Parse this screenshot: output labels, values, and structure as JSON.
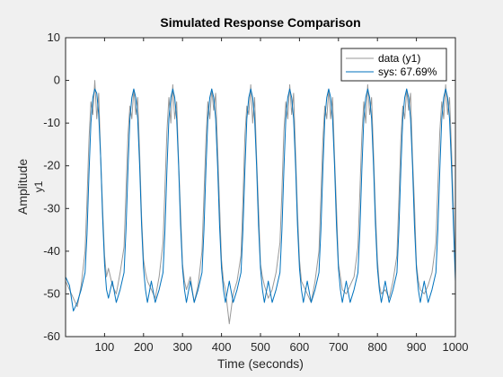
{
  "chart_data": {
    "type": "line",
    "title": "Simulated Response Comparison",
    "xlabel": "Time (seconds)",
    "ylabel": "Amplitude",
    "ylabel_sub": "y1",
    "xlim": [
      0,
      1000
    ],
    "ylim": [
      -60,
      10
    ],
    "xticks": [
      100,
      200,
      300,
      400,
      500,
      600,
      700,
      800,
      900,
      1000
    ],
    "yticks": [
      -60,
      -50,
      -40,
      -30,
      -20,
      -10,
      0,
      10
    ],
    "legend_position": "top-right",
    "grid": false,
    "series": [
      {
        "name": "data (y1)",
        "color": "#999999",
        "x": [
          0,
          10,
          20,
          30,
          40,
          50,
          55,
          60,
          65,
          70,
          75,
          80,
          85,
          90,
          95,
          100,
          105,
          110,
          120,
          130,
          140,
          150,
          155,
          160,
          165,
          170,
          175,
          180,
          185,
          190,
          195,
          200,
          205,
          210,
          220,
          230,
          240,
          250,
          255,
          260,
          265,
          270,
          275,
          280,
          285,
          290,
          295,
          300,
          305,
          310,
          320,
          330,
          340,
          350,
          355,
          360,
          365,
          370,
          375,
          380,
          385,
          390,
          395,
          400,
          405,
          410,
          420,
          430,
          440,
          450,
          455,
          460,
          465,
          470,
          475,
          480,
          485,
          490,
          495,
          500,
          505,
          510,
          520,
          530,
          540,
          550,
          555,
          560,
          565,
          570,
          575,
          580,
          585,
          590,
          595,
          600,
          605,
          610,
          620,
          630,
          640,
          650,
          655,
          660,
          665,
          670,
          675,
          680,
          685,
          690,
          695,
          700,
          705,
          710,
          720,
          730,
          740,
          750,
          755,
          760,
          765,
          770,
          775,
          780,
          785,
          790,
          795,
          800,
          805,
          810,
          820,
          830,
          840,
          850,
          855,
          860,
          865,
          870,
          875,
          880,
          885,
          890,
          895,
          900,
          905,
          910,
          920,
          930,
          940,
          950,
          955,
          960,
          965,
          970,
          975,
          980,
          985,
          990,
          995,
          1000
        ],
        "y": [
          -47,
          -49,
          -51,
          -53,
          -48,
          -40,
          -28,
          -14,
          -5,
          -8,
          0,
          -9,
          -3,
          -18,
          -30,
          -41,
          -46,
          -44,
          -48,
          -50,
          -45,
          -39,
          -26,
          -13,
          -6,
          -9,
          -2,
          -8,
          -4,
          -17,
          -32,
          -42,
          -45,
          -47,
          -49,
          -51,
          -46,
          -38,
          -25,
          -12,
          -4,
          -10,
          -1,
          -9,
          -5,
          -19,
          -31,
          -43,
          -47,
          -49,
          -46,
          -52,
          -48,
          -40,
          -27,
          -14,
          -5,
          -9,
          -2,
          -7,
          -3,
          -16,
          -29,
          -42,
          -47,
          -49,
          -57,
          -50,
          -47,
          -41,
          -28,
          -13,
          -6,
          -8,
          -1,
          -10,
          -4,
          -18,
          -30,
          -43,
          -46,
          -48,
          -51,
          -49,
          -45,
          -38,
          -26,
          -12,
          -5,
          -9,
          -1,
          -8,
          -3,
          -17,
          -31,
          -42,
          -47,
          -48,
          -50,
          -52,
          -47,
          -40,
          -27,
          -14,
          -6,
          -9,
          -2,
          -9,
          -4,
          -18,
          -30,
          -43,
          -46,
          -49,
          -50,
          -48,
          -46,
          -39,
          -26,
          -13,
          -5,
          -10,
          -1,
          -8,
          -4,
          -17,
          -31,
          -42,
          -48,
          -50,
          -49,
          -51,
          -47,
          -41,
          -28,
          -14,
          -6,
          -9,
          -2,
          -7,
          -3,
          -18,
          -29,
          -43,
          -47,
          -49,
          -50,
          -48,
          -45,
          -38,
          -25,
          -12,
          -5,
          -9,
          -1,
          -8,
          -4,
          -16,
          -30,
          -45
        ]
      },
      {
        "name": "sys: 67.69%",
        "color": "#0072bd",
        "x": [
          0,
          10,
          20,
          30,
          40,
          50,
          55,
          60,
          65,
          70,
          75,
          80,
          85,
          90,
          95,
          100,
          105,
          110,
          120,
          130,
          140,
          150,
          155,
          160,
          165,
          170,
          175,
          180,
          185,
          190,
          195,
          200,
          205,
          210,
          220,
          230,
          240,
          250,
          255,
          260,
          265,
          270,
          275,
          280,
          285,
          290,
          295,
          300,
          305,
          310,
          320,
          330,
          340,
          350,
          355,
          360,
          365,
          370,
          375,
          380,
          385,
          390,
          395,
          400,
          405,
          410,
          420,
          430,
          440,
          450,
          455,
          460,
          465,
          470,
          475,
          480,
          485,
          490,
          495,
          500,
          505,
          510,
          520,
          530,
          540,
          550,
          555,
          560,
          565,
          570,
          575,
          580,
          585,
          590,
          595,
          600,
          605,
          610,
          620,
          630,
          640,
          650,
          655,
          660,
          665,
          670,
          675,
          680,
          685,
          690,
          695,
          700,
          705,
          710,
          720,
          730,
          740,
          750,
          755,
          760,
          765,
          770,
          775,
          780,
          785,
          790,
          795,
          800,
          805,
          810,
          820,
          830,
          840,
          850,
          855,
          860,
          865,
          870,
          875,
          880,
          885,
          890,
          895,
          900,
          905,
          910,
          920,
          930,
          940,
          950,
          955,
          960,
          965,
          970,
          975,
          980,
          985,
          990,
          995,
          1000
        ],
        "y": [
          -46,
          -48,
          -54,
          -52,
          -49,
          -45,
          -36,
          -22,
          -10,
          -4,
          -2,
          -3,
          -8,
          -18,
          -32,
          -43,
          -49,
          -51,
          -47,
          -52,
          -49,
          -45,
          -35,
          -21,
          -9,
          -4,
          -2,
          -4,
          -9,
          -20,
          -34,
          -44,
          -49,
          -52,
          -47,
          -52,
          -49,
          -45,
          -35,
          -21,
          -9,
          -4,
          -2,
          -4,
          -9,
          -20,
          -34,
          -44,
          -49,
          -52,
          -47,
          -52,
          -49,
          -45,
          -35,
          -21,
          -9,
          -4,
          -2,
          -4,
          -9,
          -20,
          -34,
          -44,
          -49,
          -52,
          -47,
          -52,
          -49,
          -45,
          -35,
          -21,
          -9,
          -4,
          -2,
          -4,
          -9,
          -20,
          -34,
          -44,
          -49,
          -52,
          -47,
          -52,
          -49,
          -45,
          -35,
          -21,
          -9,
          -4,
          -2,
          -4,
          -9,
          -20,
          -34,
          -44,
          -49,
          -52,
          -47,
          -52,
          -49,
          -45,
          -35,
          -21,
          -9,
          -4,
          -2,
          -4,
          -9,
          -20,
          -34,
          -44,
          -49,
          -52,
          -47,
          -52,
          -49,
          -45,
          -35,
          -21,
          -9,
          -4,
          -2,
          -4,
          -9,
          -20,
          -34,
          -44,
          -49,
          -52,
          -47,
          -52,
          -49,
          -45,
          -35,
          -21,
          -9,
          -4,
          -2,
          -4,
          -9,
          -20,
          -34,
          -44,
          -49,
          -52,
          -47,
          -52,
          -49,
          -45,
          -35,
          -21,
          -9,
          -4,
          -2,
          -4,
          -9,
          -20,
          -34,
          -47
        ]
      }
    ]
  }
}
